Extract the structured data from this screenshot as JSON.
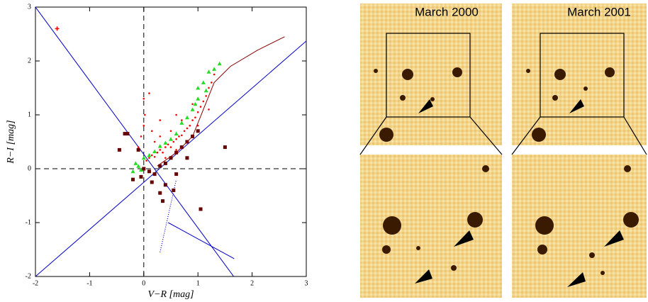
{
  "chart_data": {
    "type": "scatter",
    "xlabel": "V−R [mag]",
    "ylabel": "R−I [mag]",
    "xlim": [
      -2,
      3
    ],
    "ylim": [
      -2,
      3
    ],
    "xticks": [
      -2,
      -1,
      0,
      1,
      2,
      3
    ],
    "yticks": [
      -2,
      -1,
      0,
      1,
      2,
      3
    ],
    "reference_lines": {
      "x": 0,
      "y": 0
    },
    "series": [
      {
        "marker": "line",
        "color": "#0000cc",
        "x": [
          -2,
          1.66
        ],
        "y": [
          3,
          -2
        ]
      },
      {
        "marker": "line",
        "color": "#0000cc",
        "x": [
          -2,
          3
        ],
        "y": [
          -2,
          2.37
        ]
      },
      {
        "marker": "line",
        "color": "#0000cc",
        "x": [
          0.45,
          1.67
        ],
        "y": [
          -1.0,
          -1.67
        ]
      },
      {
        "marker": "dotted",
        "color": "#0000cc",
        "x": [
          0.3,
          0.6
        ],
        "y": [
          -1.55,
          -0.2
        ]
      },
      {
        "marker": "dot",
        "color": "#ff0000",
        "x": [
          0.05,
          0.1,
          0.15,
          0.2,
          0.25,
          0.3,
          0.35,
          0.4,
          0.45,
          0.5,
          0.55,
          0.6,
          0.65,
          0.7,
          0.75,
          0.8,
          0.85,
          0.9,
          0.95,
          1.0,
          1.05,
          1.1,
          1.15,
          1.2,
          1.25,
          1.3,
          0.3,
          0.5,
          0.7,
          0.9,
          0.2,
          0.4,
          0.6,
          0.8,
          1.0,
          1.2,
          0.0,
          0.02,
          0.0,
          -0.05,
          0.1,
          0.3,
          0.6,
          -0.1,
          0.15
        ],
        "y": [
          0.15,
          0.2,
          0.25,
          0.22,
          0.3,
          0.35,
          0.3,
          0.4,
          0.45,
          0.4,
          0.5,
          0.55,
          0.6,
          0.62,
          0.7,
          0.75,
          0.8,
          0.9,
          0.95,
          1.05,
          1.15,
          1.25,
          1.35,
          1.5,
          1.6,
          1.75,
          0.6,
          0.7,
          0.9,
          1.2,
          0.5,
          0.2,
          0.35,
          0.5,
          0.8,
          1.1,
          1.3,
          1.0,
          0.8,
          0.6,
          1.4,
          0.9,
          1.0,
          0.4,
          0.7
        ]
      },
      {
        "marker": "plus",
        "color": "#ff0000",
        "x": [
          -1.6
        ],
        "y": [
          2.6
        ]
      },
      {
        "marker": "triangle",
        "color": "#22dd22",
        "x": [
          1.0,
          1.1,
          1.2,
          1.3,
          1.4,
          0.9,
          0.8,
          0.7,
          0.6,
          0.5,
          0.4,
          0.3,
          0.2,
          0.1,
          0.0,
          -0.1,
          -0.2,
          -0.15,
          -0.05,
          1.0,
          0.95,
          1.15
        ],
        "y": [
          1.5,
          1.6,
          1.8,
          1.85,
          1.95,
          1.1,
          0.95,
          0.85,
          0.65,
          0.55,
          0.48,
          0.42,
          0.32,
          0.25,
          0.2,
          0.05,
          -0.05,
          0.1,
          -0.02,
          1.3,
          1.2,
          1.45
        ]
      },
      {
        "marker": "square",
        "color": "#660000",
        "x": [
          -0.35,
          -0.3,
          -0.45,
          -0.1,
          -0.2,
          0.0,
          0.1,
          0.2,
          0.3,
          0.4,
          0.5,
          0.6,
          0.7,
          0.8,
          0.9,
          1.0,
          0.4,
          0.3,
          0.35,
          0.55,
          1.05,
          0.6,
          1.5,
          -0.05,
          0.15,
          0.8
        ],
        "y": [
          0.65,
          0.65,
          0.35,
          0.35,
          -0.2,
          0.0,
          -0.05,
          -0.1,
          0.05,
          0.1,
          0.2,
          0.3,
          0.4,
          0.5,
          0.6,
          0.7,
          -0.3,
          -0.45,
          -0.6,
          -0.4,
          -0.75,
          -0.1,
          0.4,
          -0.15,
          -0.25,
          0.2
        ]
      },
      {
        "marker": "line",
        "color": "#880000",
        "x": [
          0.25,
          0.6,
          0.9,
          1.1,
          1.3,
          1.6,
          2.1,
          2.6
        ],
        "y": [
          0.05,
          0.3,
          0.6,
          1.1,
          1.6,
          1.9,
          2.2,
          2.45
        ]
      }
    ]
  },
  "panels": [
    {
      "label": "March 2000"
    },
    {
      "label": "March 2001"
    }
  ]
}
